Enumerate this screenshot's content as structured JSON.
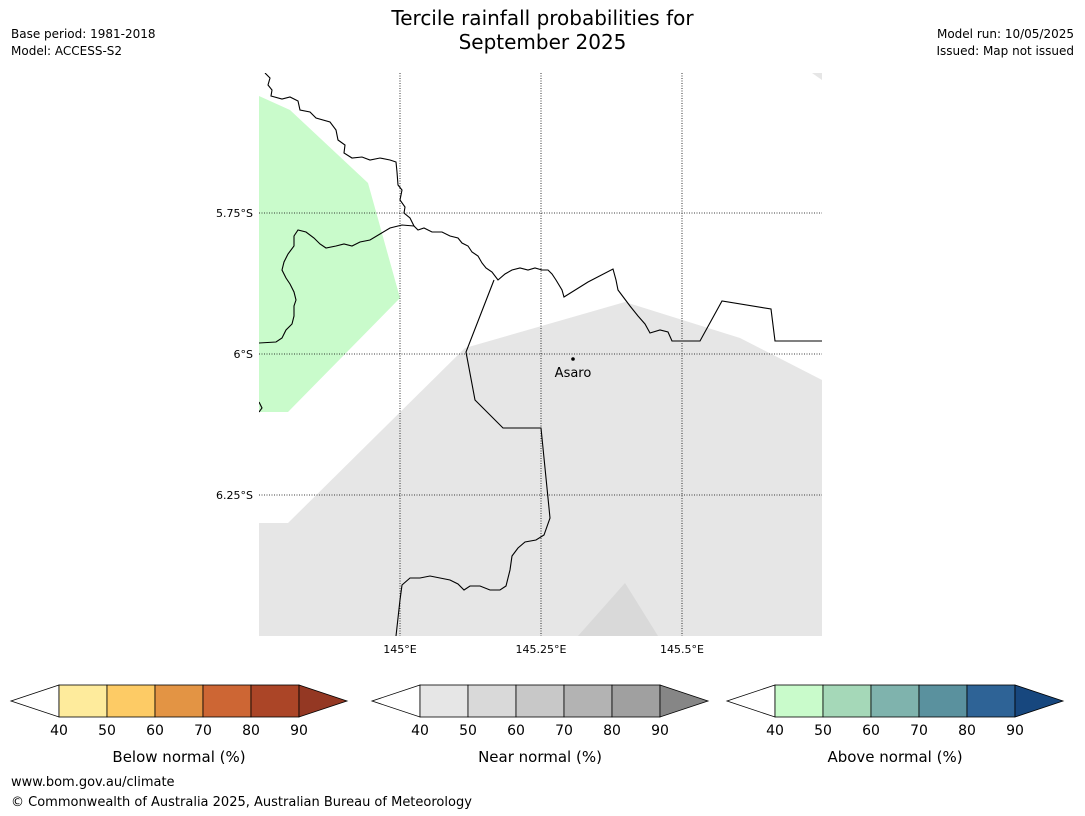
{
  "title": {
    "line1": "Tercile rainfall probabilities for",
    "line2": "September 2025"
  },
  "meta": {
    "base_period": "Base period: 1981-2018",
    "model": "Model: ACCESS-S2",
    "model_run": "Model run: 10/05/2025",
    "issued": "Issued: Map not issued"
  },
  "map": {
    "lat_labels": [
      "5.75°S",
      "6°S",
      "6.25°S"
    ],
    "lon_labels": [
      "145°E",
      "145.25°E",
      "145.5°E"
    ],
    "place": {
      "name": "Asaro"
    },
    "fill_colors": {
      "above_40_50": "#c9fbcb",
      "near_40_50": "#e6e6e6",
      "near_50_60": "#d9d9d9"
    }
  },
  "colorbars": [
    {
      "label": "Below normal (%)",
      "ticks": [
        "40",
        "50",
        "60",
        "70",
        "80",
        "90"
      ],
      "colors": [
        "#ffffff",
        "#feeb9c",
        "#fdcb65",
        "#e39444",
        "#cd6634",
        "#ab4527",
        "#943823"
      ]
    },
    {
      "label": "Near normal (%)",
      "ticks": [
        "40",
        "50",
        "60",
        "70",
        "80",
        "90"
      ],
      "colors": [
        "#ffffff",
        "#e6e6e6",
        "#d9d9d9",
        "#c8c8c8",
        "#b3b3b3",
        "#a0a0a0",
        "#868686"
      ]
    },
    {
      "label": "Above normal (%)",
      "ticks": [
        "40",
        "50",
        "60",
        "70",
        "80",
        "90"
      ],
      "colors": [
        "#ffffff",
        "#c9fbcb",
        "#a5d8b8",
        "#7fb3ad",
        "#5a919e",
        "#2e6396",
        "#17477e"
      ]
    }
  ],
  "footer": {
    "url": "www.bom.gov.au/climate",
    "copyright": "© Commonwealth of Australia 2025, Australian Bureau of Meteorology"
  }
}
